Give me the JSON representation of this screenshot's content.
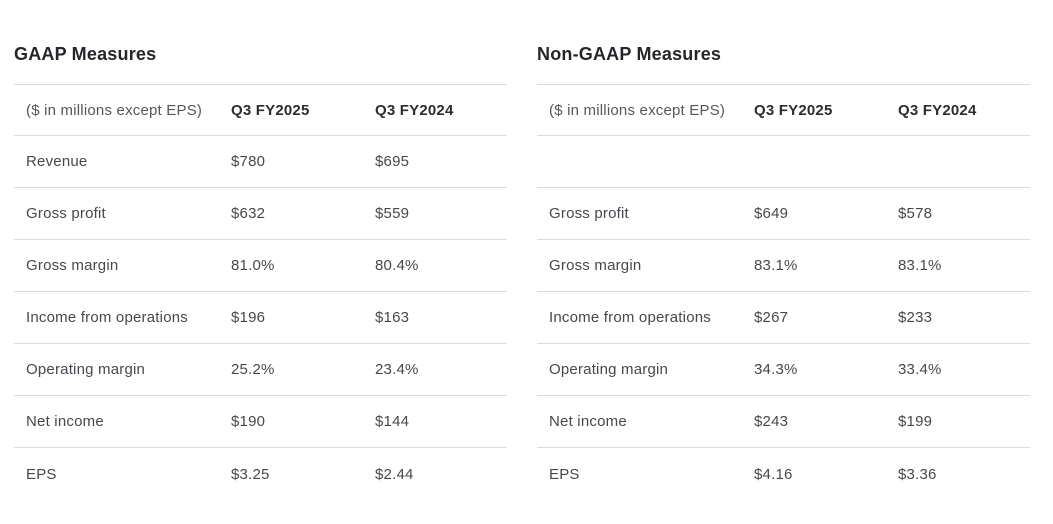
{
  "colors": {
    "background": "#ffffff",
    "title_text": "#242629",
    "header_text": "#2b2d30",
    "body_text": "#45484c",
    "muted_text": "#54575b",
    "divider": "#dadcde"
  },
  "chart_data": [
    {
      "type": "table",
      "title": "GAAP Measures",
      "unit_note": "($ in millions except EPS)",
      "columns": [
        "Q3 FY2025",
        "Q3 FY2024"
      ],
      "rows": [
        {
          "label": "Revenue",
          "values": [
            "$780",
            "$695"
          ]
        },
        {
          "label": "Gross profit",
          "values": [
            "$632",
            "$559"
          ]
        },
        {
          "label": "Gross margin",
          "values": [
            "81.0%",
            "80.4%"
          ]
        },
        {
          "label": "Income from operations",
          "values": [
            "$196",
            "$163"
          ]
        },
        {
          "label": "Operating margin",
          "values": [
            "25.2%",
            "23.4%"
          ]
        },
        {
          "label": "Net income",
          "values": [
            "$190",
            "$144"
          ]
        },
        {
          "label": "EPS",
          "values": [
            "$3.25",
            "$2.44"
          ]
        }
      ]
    },
    {
      "type": "table",
      "title": "Non-GAAP Measures",
      "unit_note": "($ in millions except EPS)",
      "columns": [
        "Q3 FY2025",
        "Q3 FY2024"
      ],
      "rows": [
        {
          "label": "",
          "values": [
            "",
            ""
          ]
        },
        {
          "label": "Gross profit",
          "values": [
            "$649",
            "$578"
          ]
        },
        {
          "label": "Gross margin",
          "values": [
            "83.1%",
            "83.1%"
          ]
        },
        {
          "label": "Income from operations",
          "values": [
            "$267",
            "$233"
          ]
        },
        {
          "label": "Operating margin",
          "values": [
            "34.3%",
            "33.4%"
          ]
        },
        {
          "label": "Net income",
          "values": [
            "$243",
            "$199"
          ]
        },
        {
          "label": "EPS",
          "values": [
            "$4.16",
            "$3.36"
          ]
        }
      ]
    }
  ]
}
